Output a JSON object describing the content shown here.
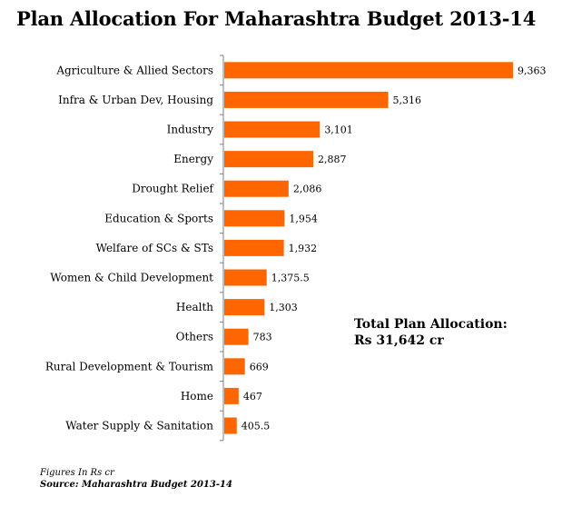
{
  "colors": {
    "bar": "#FF6600",
    "axis": "#7f7f7f"
  },
  "chart_data": {
    "type": "bar",
    "orientation": "horizontal",
    "title": "Plan Allocation  For Maharashtra Budget 2013-14",
    "categories": [
      "Agriculture & Allied Sectors",
      "Infra & Urban Dev, Housing",
      "Industry",
      "Energy",
      "Drought Relief",
      "Education & Sports",
      "Welfare of SCs & STs",
      "Women & Child Development",
      "Health",
      "Others",
      "Rural Development & Tourism",
      "Home",
      "Water Supply & Sanitation"
    ],
    "values": [
      9363,
      5316,
      3101,
      2887,
      2086,
      1954,
      1932,
      1375.5,
      1303,
      783,
      669,
      467,
      405.5
    ],
    "value_labels": [
      "9,363",
      "5,316",
      "3,101",
      "2,887",
      "2,086",
      "1,954",
      "1,932",
      "1,375.5",
      "1,303",
      "783",
      "669",
      "467",
      "405.5"
    ],
    "xlim": [
      0,
      9363
    ],
    "grid": false
  },
  "annotation": {
    "line1": "Total Plan Allocation:",
    "line2": "Rs 31,642  cr"
  },
  "footer": {
    "note": "Figures In Rs cr",
    "source": "Source: Maharashtra Budget 2013-14"
  }
}
